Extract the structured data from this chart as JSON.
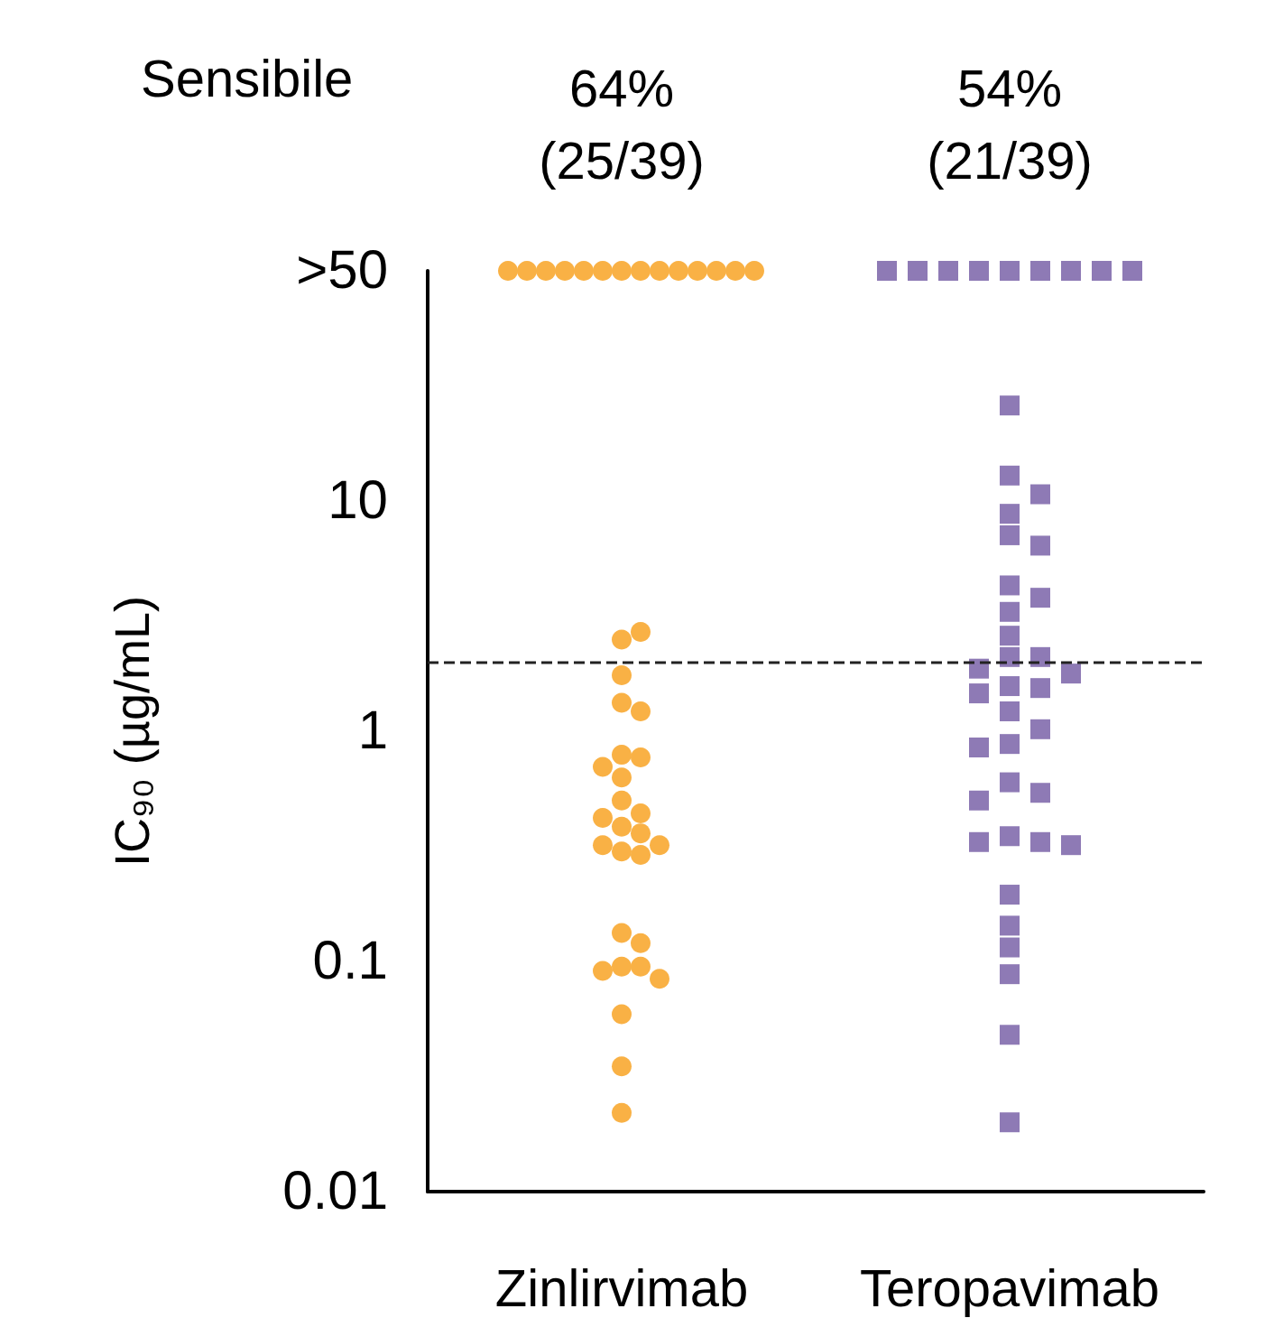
{
  "chart_data": {
    "type": "scatter",
    "ylabel": "IC₉₀ (µg/mL)",
    "categories": [
      "Zinlirvimab",
      "Teropavimab"
    ],
    "annotations": [
      "Sensibile",
      "64%\n(25/39)",
      "54%\n(21/39)"
    ],
    "log": "y",
    "ylim": [
      0.01,
      100
    ],
    "yticks": [
      0.01,
      0.1,
      1,
      10,
      {
        "value": 100,
        "label": ">50"
      }
    ],
    "grid": false,
    "ref_lines": [
      {
        "axis": "y",
        "value": 2,
        "color": "#222222",
        "line_style": "dashed"
      }
    ],
    "series": [
      {
        "color": "#f9b145",
        "marker": "circle",
        "x": [
          "Zinlirvimab",
          "Zinlirvimab",
          "Zinlirvimab",
          "Zinlirvimab",
          "Zinlirvimab",
          "Zinlirvimab",
          "Zinlirvimab",
          "Zinlirvimab",
          "Zinlirvimab",
          "Zinlirvimab",
          "Zinlirvimab",
          "Zinlirvimab",
          "Zinlirvimab",
          "Zinlirvimab",
          "Zinlirvimab",
          "Zinlirvimab",
          "Zinlirvimab",
          "Zinlirvimab",
          "Zinlirvimab",
          "Zinlirvimab",
          "Zinlirvimab",
          "Zinlirvimab",
          "Zinlirvimab",
          "Zinlirvimab",
          "Zinlirvimab",
          "Zinlirvimab",
          "Zinlirvimab",
          "Zinlirvimab",
          "Zinlirvimab",
          "Zinlirvimab",
          "Zinlirvimab",
          "Zinlirvimab",
          "Zinlirvimab",
          "Zinlirvimab",
          "Zinlirvimab",
          "Zinlirvimab",
          "Zinlirvimab",
          "Zinlirvimab",
          "Zinlirvimab",
          "Zinlirvimab",
          "Zinlirvimab"
        ],
        "values": [
          100,
          100,
          100,
          100,
          100,
          100,
          100,
          100,
          100,
          100,
          100,
          100,
          100,
          100,
          2.5,
          2.7,
          1.75,
          1.33,
          1.22,
          0.79,
          0.77,
          0.7,
          0.63,
          0.5,
          0.44,
          0.42,
          0.385,
          0.36,
          0.32,
          0.32,
          0.3,
          0.29,
          0.133,
          0.12,
          0.095,
          0.095,
          0.091,
          0.084,
          0.059,
          0.035,
          0.022
        ]
      },
      {
        "color": "#8e7ab5",
        "marker": "square",
        "x": [
          "Teropavimab",
          "Teropavimab",
          "Teropavimab",
          "Teropavimab",
          "Teropavimab",
          "Teropavimab",
          "Teropavimab",
          "Teropavimab",
          "Teropavimab",
          "Teropavimab",
          "Teropavimab",
          "Teropavimab",
          "Teropavimab",
          "Teropavimab",
          "Teropavimab",
          "Teropavimab",
          "Teropavimab",
          "Teropavimab",
          "Teropavimab",
          "Teropavimab",
          "Teropavimab",
          "Teropavimab",
          "Teropavimab",
          "Teropavimab",
          "Teropavimab",
          "Teropavimab",
          "Teropavimab",
          "Teropavimab",
          "Teropavimab",
          "Teropavimab",
          "Teropavimab",
          "Teropavimab",
          "Teropavimab",
          "Teropavimab",
          "Teropavimab",
          "Teropavimab",
          "Teropavimab",
          "Teropavimab",
          "Teropavimab",
          "Teropavimab",
          "Teropavimab",
          "Teropavimab",
          "Teropavimab"
        ],
        "values": [
          100,
          100,
          100,
          100,
          100,
          100,
          100,
          100,
          100,
          26,
          12.9,
          10.7,
          8.8,
          7.1,
          6.4,
          4.3,
          3.8,
          3.3,
          2.6,
          2.1,
          2.1,
          1.87,
          1.78,
          1.57,
          1.54,
          1.46,
          1.22,
          1.02,
          0.88,
          0.85,
          0.6,
          0.54,
          0.5,
          0.35,
          0.33,
          0.33,
          0.32,
          0.195,
          0.143,
          0.115,
          0.088,
          0.048,
          0.02
        ]
      }
    ]
  }
}
